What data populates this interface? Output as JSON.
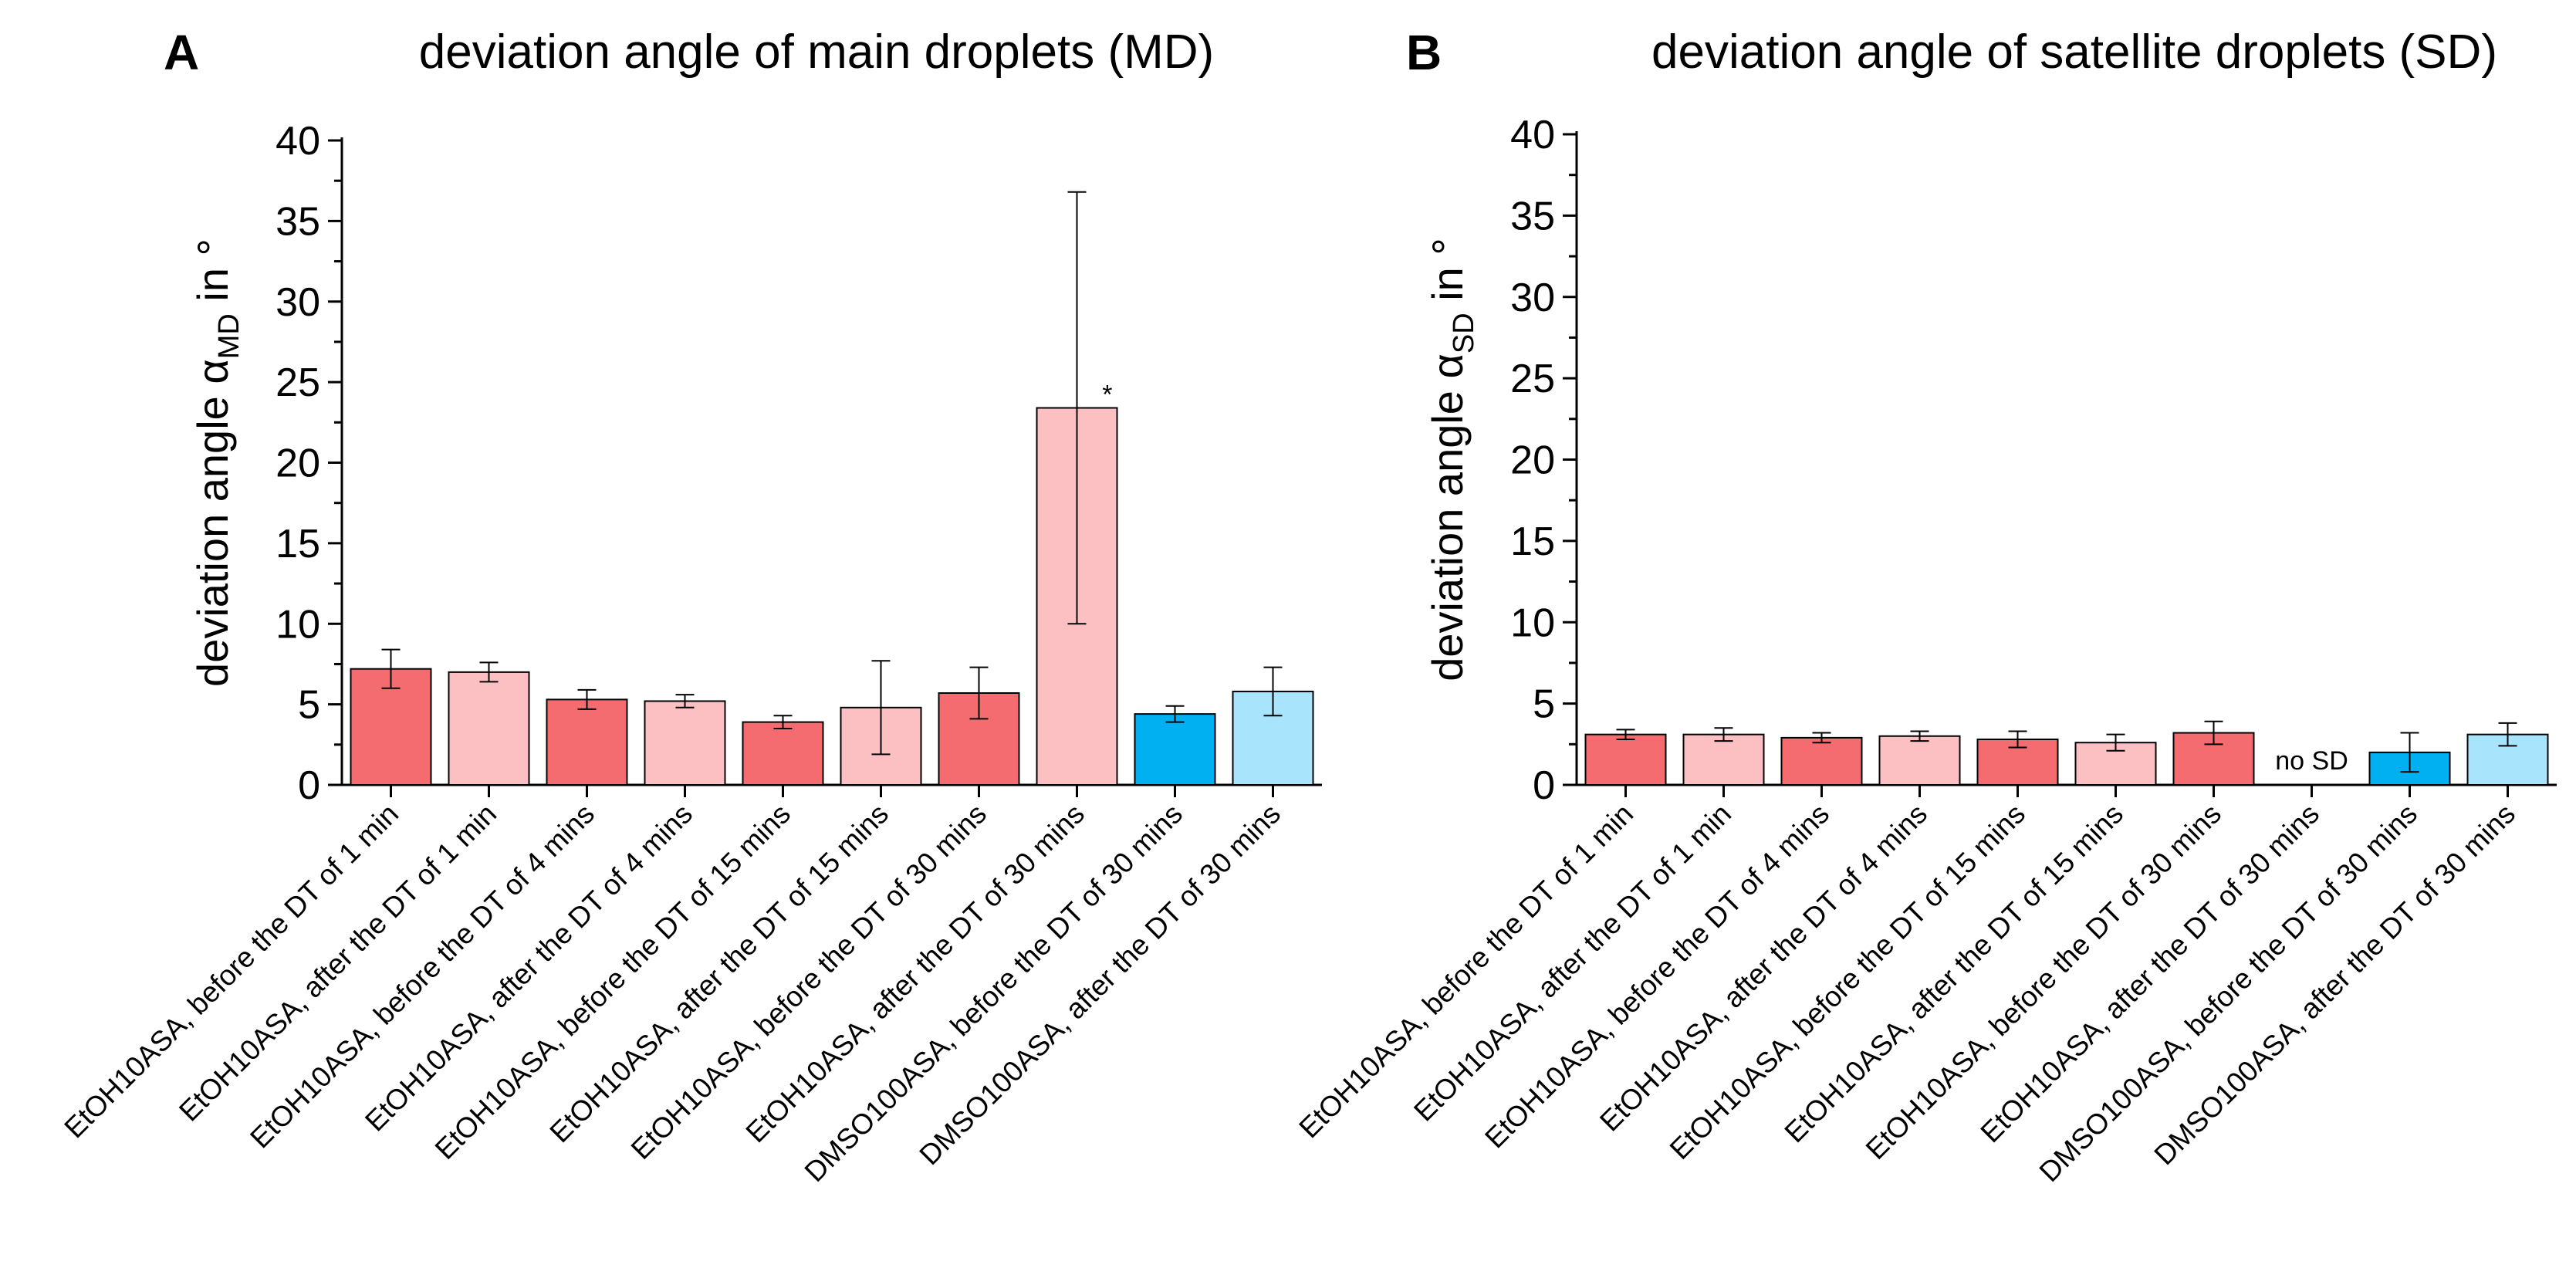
{
  "chart_data": [
    {
      "type": "bar",
      "panel_letter": "A",
      "title": "deviation angle of main droplets (MD)",
      "ylabel": {
        "prefix": "deviation angle ",
        "symbol": "α",
        "subscript": "MD",
        "suffix": " in °"
      },
      "xlabel": "",
      "ylim": [
        0,
        40
      ],
      "yticks": [
        0,
        5,
        10,
        15,
        20,
        25,
        30,
        35,
        40
      ],
      "categories": [
        "EtOH10ASA, before the DT of 1 min",
        "EtOH10ASA, after the DT of 1 min",
        "EtOH10ASA, before the DT of 4 mins",
        "EtOH10ASA, after the DT of 4 mins",
        "EtOH10ASA, before the DT of 15 mins",
        "EtOH10ASA, after the DT of 15 mins",
        "EtOH10ASA, before the DT of 30 mins",
        "EtOH10ASA, after the DT of 30 mins",
        "DMSO100ASA, before the DT of 30 mins",
        "DMSO100ASA, after the DT of 30 mins"
      ],
      "values": [
        7.2,
        7.0,
        5.3,
        5.2,
        3.9,
        4.8,
        5.7,
        23.4,
        4.4,
        5.8
      ],
      "errors": [
        1.2,
        0.6,
        0.6,
        0.4,
        0.4,
        2.9,
        1.6,
        13.4,
        0.5,
        1.5
      ],
      "colors": [
        "#f56c70",
        "#fcc0c3",
        "#f56c70",
        "#fcc0c3",
        "#f56c70",
        "#fcc0c3",
        "#f56c70",
        "#fcc0c3",
        "#00b0f0",
        "#a8e4fb"
      ],
      "annotations": [
        {
          "index": 7,
          "text": "*"
        }
      ]
    },
    {
      "type": "bar",
      "panel_letter": "B",
      "title": "deviation angle of satellite droplets (SD)",
      "ylabel": {
        "prefix": "deviation angle ",
        "symbol": "α",
        "subscript": "SD",
        "suffix": " in °"
      },
      "xlabel": "",
      "ylim": [
        0,
        40
      ],
      "yticks": [
        0,
        5,
        10,
        15,
        20,
        25,
        30,
        35,
        40
      ],
      "categories": [
        "EtOH10ASA, before the DT of 1 min",
        "EtOH10ASA, after the DT of 1 min",
        "EtOH10ASA, before the DT of 4 mins",
        "EtOH10ASA, after the DT of 4 mins",
        "EtOH10ASA, before the DT of 15 mins",
        "EtOH10ASA, after the DT of 15 mins",
        "EtOH10ASA, before the DT of 30 mins",
        "EtOH10ASA, after the DT of 30 mins",
        "DMSO100ASA, before the DT of 30 mins",
        "DMSO100ASA, after the DT of 30 mins"
      ],
      "values": [
        3.1,
        3.1,
        2.9,
        3.0,
        2.8,
        2.6,
        3.2,
        null,
        2.0,
        3.1
      ],
      "errors": [
        0.3,
        0.4,
        0.3,
        0.3,
        0.5,
        0.5,
        0.7,
        null,
        1.2,
        0.7
      ],
      "colors": [
        "#f56c70",
        "#fcc0c3",
        "#f56c70",
        "#fcc0c3",
        "#f56c70",
        "#fcc0c3",
        "#f56c70",
        "#fcc0c3",
        "#00b0f0",
        "#a8e4fb"
      ],
      "annotations": [
        {
          "index": 7,
          "text": "no SD"
        }
      ]
    }
  ]
}
